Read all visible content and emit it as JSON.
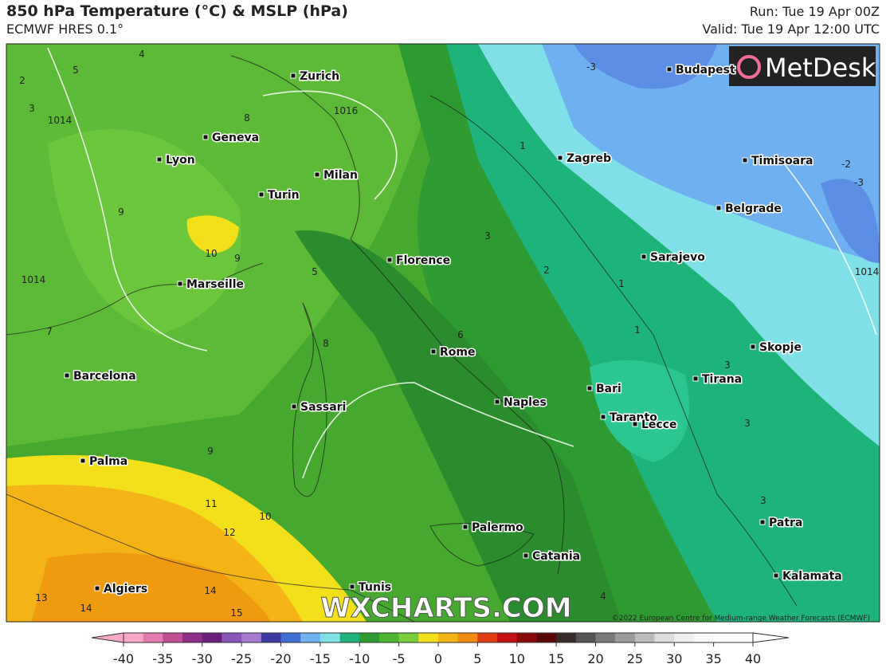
{
  "header": {
    "title": "850 hPa Temperature (°C) & MSLP (hPa)",
    "subtitle": "ECMWF HRES 0.1°",
    "run": "Run: Tue 19 Apr 00Z",
    "valid": "Valid: Tue 19 Apr 12:00 UTC"
  },
  "logo": "MetDesk",
  "watermark": "WXCHARTS.COM",
  "copyright": "©2022 European Centre for Medium-range Weather Forecasts (ECMWF)",
  "cities": [
    "Zurich",
    "Geneva",
    "Lyon",
    "Milan",
    "Turin",
    "Marseille",
    "Florence",
    "Rome",
    "Barcelona",
    "Sassari",
    "Naples",
    "Bari",
    "Taranto",
    "Lecce",
    "Palma",
    "Palermo",
    "Catania",
    "Algiers",
    "Tunis",
    "Zagreb",
    "Budapest",
    "Timisoara",
    "Belgrade",
    "Sarajevo",
    "Skopje",
    "Tirana",
    "Patra",
    "Kalamata"
  ],
  "contour_labels": [
    4,
    5,
    3,
    2,
    8,
    9,
    10,
    9,
    5,
    7,
    6,
    8,
    9,
    11,
    10,
    12,
    13,
    14,
    14,
    15,
    3,
    1,
    -3,
    -2,
    -3,
    1,
    2,
    3,
    1,
    3,
    4,
    3,
    1014,
    1014,
    1014,
    1016
  ],
  "colorbar": {
    "range": [
      -40,
      40
    ],
    "ticks": [
      -40,
      -35,
      -30,
      -25,
      -20,
      -15,
      -10,
      -5,
      0,
      5,
      10,
      15,
      20,
      25,
      30,
      35,
      40
    ],
    "colors": [
      "#f7a8c8",
      "#e27bb0",
      "#c34e95",
      "#8e2e84",
      "#6a1f7a",
      "#8a55b8",
      "#a97ad0",
      "#3a3aa0",
      "#3f6fd6",
      "#6fb0f0",
      "#7fe0e8",
      "#1db37a",
      "#2e9a32",
      "#4cb431",
      "#7ccd3c",
      "#f2e01a",
      "#f4b416",
      "#f08a10",
      "#e03a10",
      "#c01010",
      "#8a0a0a",
      "#5a0808",
      "#3a2a2a",
      "#555555",
      "#7a7a7a",
      "#9a9a9a",
      "#bbbbbb",
      "#dddddd",
      "#eeeeee",
      "#f8f8f8",
      "#ffffff",
      "#ffffff"
    ]
  }
}
